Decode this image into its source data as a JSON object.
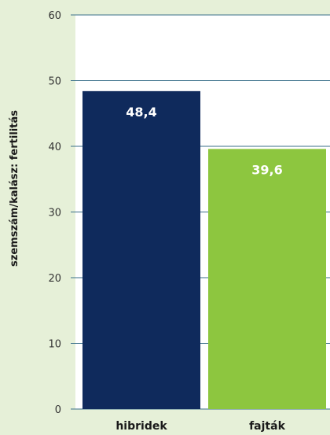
{
  "chart_data": {
    "type": "bar",
    "categories": [
      "hibridek",
      "fajták"
    ],
    "values": [
      48.4,
      39.6
    ],
    "value_labels": [
      "48,4",
      "39,6"
    ],
    "bar_colors": [
      "#0f2a5c",
      "#8dc63f"
    ],
    "ylabel": "szemszám/kalász: fertilitás",
    "ylim": [
      0,
      60
    ],
    "yticks": [
      0,
      10,
      20,
      30,
      40,
      50,
      60
    ],
    "grid": true,
    "plot_background": "#ffffff",
    "page_background": "#e6f0d8",
    "gridline_color": "#3a6f8a"
  }
}
